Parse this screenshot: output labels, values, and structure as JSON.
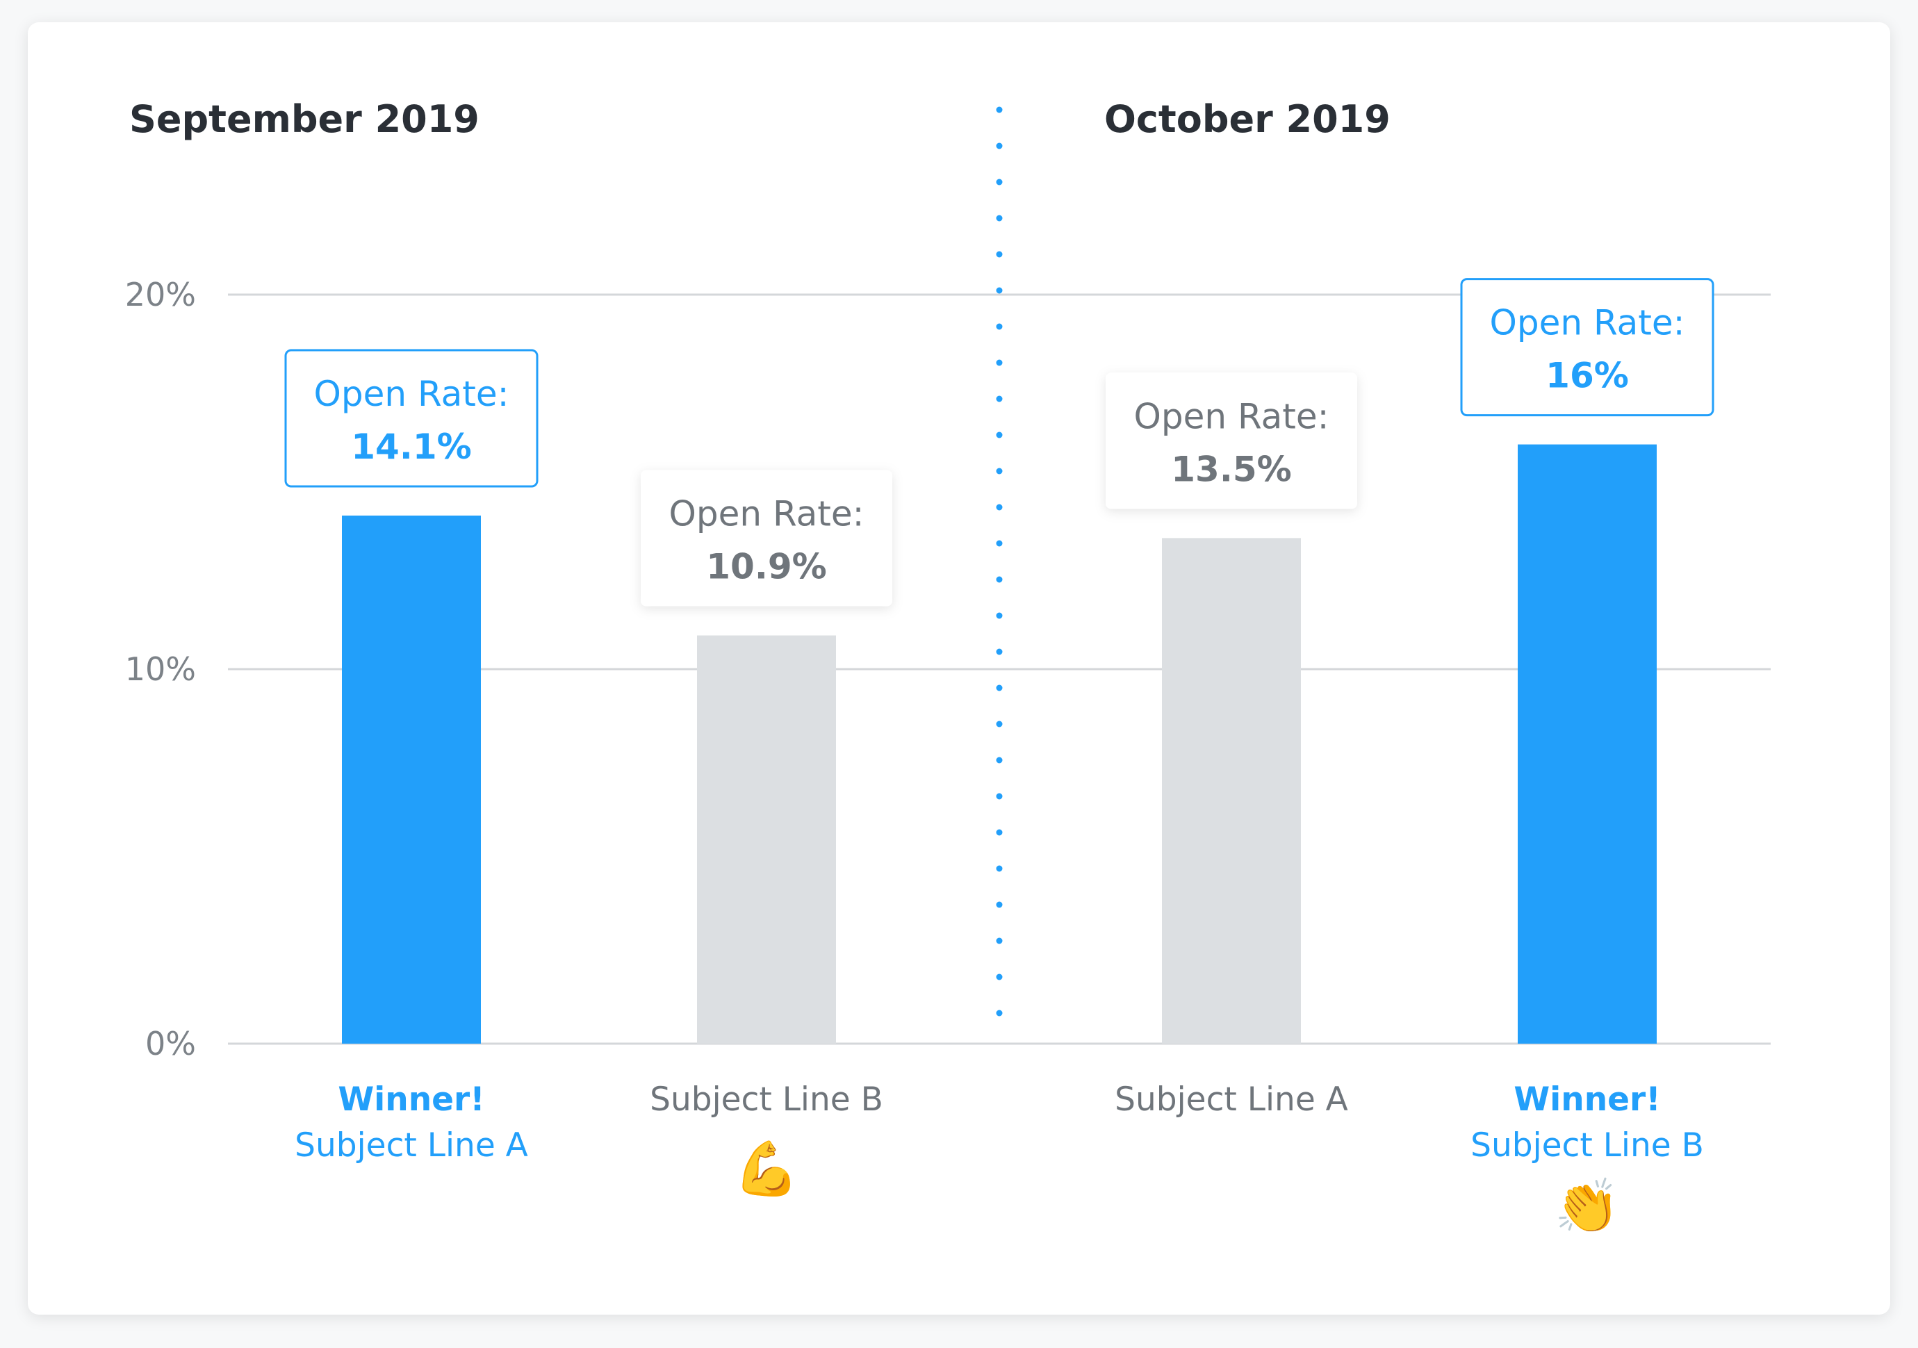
{
  "colors": {
    "winner": "#229ffa",
    "other": "#dcdfe2",
    "winner_text": "#229ffa",
    "other_text": "#6f757b",
    "value_text": "#6f757b",
    "divider": "#229ffa",
    "grid": "#d4d7da"
  },
  "chart_data": {
    "type": "bar",
    "ylim": [
      0,
      20
    ],
    "y_ticks": [
      "0%",
      "10%",
      "20%"
    ],
    "y_tick_values": [
      0,
      10,
      20
    ],
    "grid": true,
    "value_label_prefix": "Open Rate:",
    "groups": [
      {
        "title": "September 2019",
        "bars": [
          {
            "category": "Subject Line A",
            "value": 14.1,
            "value_label": "14.1%",
            "winner": true,
            "winner_label": "Winner!",
            "emoji": ""
          },
          {
            "category": "Subject Line B",
            "value": 10.9,
            "value_label": "10.9%",
            "winner": false,
            "winner_label": "",
            "emoji": "💪"
          }
        ]
      },
      {
        "title": "October 2019",
        "bars": [
          {
            "category": "Subject Line A",
            "value": 13.5,
            "value_label": "13.5%",
            "winner": false,
            "winner_label": "",
            "emoji": ""
          },
          {
            "category": "Subject Line B",
            "value": 16,
            "value_label": "16%",
            "winner": true,
            "winner_label": "Winner!",
            "emoji": "👏"
          }
        ]
      }
    ]
  }
}
